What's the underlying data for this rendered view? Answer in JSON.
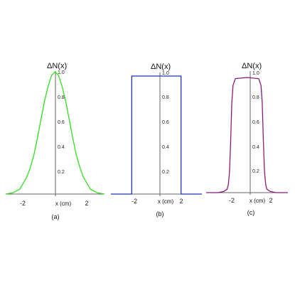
{
  "chart_data": [
    {
      "type": "line",
      "panel_label": "(a)",
      "ylabel": "ΔN(x)",
      "xlabel": "x (cm)",
      "xlim": [
        -3.5,
        3.5
      ],
      "ylim": [
        0,
        1.0
      ],
      "x_tick_labels": [
        "-2",
        "2"
      ],
      "y_tick_labels": [
        "0.2",
        "0.4",
        "0.6",
        "0.8",
        "1.0"
      ],
      "grid": false,
      "series": [
        {
          "color": "#33dd22",
          "x": [
            -3.5,
            -3.0,
            -2.5,
            -2.0,
            -1.75,
            -1.5,
            -1.25,
            -1.0,
            -0.75,
            -0.5,
            -0.25,
            0.0,
            0.25,
            0.5,
            0.75,
            1.0,
            1.25,
            1.5,
            1.75,
            2.0,
            2.5,
            3.0,
            3.5
          ],
          "y": [
            0.0,
            0.01,
            0.04,
            0.14,
            0.22,
            0.32,
            0.46,
            0.61,
            0.76,
            0.88,
            0.97,
            1.0,
            0.97,
            0.88,
            0.76,
            0.61,
            0.46,
            0.32,
            0.22,
            0.14,
            0.04,
            0.01,
            0.0
          ]
        }
      ]
    },
    {
      "type": "line",
      "panel_label": "(b)",
      "ylabel": "ΔN(x)",
      "xlabel": "x (cm)",
      "xlim": [
        -3.5,
        3.5
      ],
      "ylim": [
        0,
        1.0
      ],
      "x_tick_labels": [
        "-2",
        "2"
      ],
      "y_tick_labels": [
        "0.2",
        "0.4",
        "0.6",
        "0.8",
        "1.0"
      ],
      "grid": false,
      "series": [
        {
          "color": "#2233bb",
          "x": [
            -3.5,
            -1.9,
            -1.9,
            1.9,
            1.9,
            3.5
          ],
          "y": [
            0.0,
            0.0,
            1.0,
            1.0,
            0.0,
            0.0
          ]
        }
      ]
    },
    {
      "type": "line",
      "panel_label": "(c)",
      "ylabel": "ΔN(x)",
      "xlabel": "x (cm)",
      "xlim": [
        -3.5,
        3.5
      ],
      "ylim": [
        0,
        1.0
      ],
      "x_tick_labels": [
        "-2",
        "2"
      ],
      "y_tick_labels": [
        "0.2",
        "0.4",
        "0.6",
        "0.8",
        "1.0"
      ],
      "grid": false,
      "series": [
        {
          "color": "#8a1a7a",
          "x": [
            -3.5,
            -2.5,
            -2.0,
            -1.7,
            -1.6,
            -1.5,
            -1.4,
            -1.3,
            -1.2,
            -1.0,
            0.0,
            1.0,
            1.2,
            1.3,
            1.4,
            1.5,
            1.6,
            1.7,
            2.0,
            2.5,
            3.5
          ],
          "y": [
            0.0,
            0.0,
            0.01,
            0.03,
            0.07,
            0.18,
            0.45,
            0.78,
            0.93,
            0.99,
            1.0,
            0.99,
            0.93,
            0.78,
            0.45,
            0.18,
            0.07,
            0.03,
            0.01,
            0.0,
            0.0
          ]
        }
      ]
    }
  ]
}
